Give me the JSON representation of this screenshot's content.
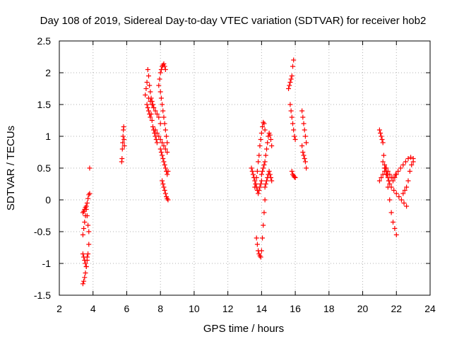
{
  "chart_data": {
    "type": "scatter",
    "title": "Day 108 of 2019, Sidereal Day-to-day VTEC variation (SDTVAR) for receiver hob2",
    "xlabel": "GPS time / hours",
    "ylabel": "SDTVAR / TECUs",
    "xlim": [
      2,
      24
    ],
    "ylim": [
      -1.5,
      2.5
    ],
    "xticks": [
      "2",
      "4",
      "6",
      "8",
      "10",
      "12",
      "14",
      "16",
      "18",
      "20",
      "22",
      "24"
    ],
    "yticks": [
      "2.5",
      "2",
      "1.5",
      "1",
      "0.5",
      "0",
      "-0.5",
      "-1",
      "-1.5"
    ],
    "grid": true,
    "marker": "+",
    "color": "#ff0000",
    "segments": [
      {
        "name": "arc-3.4-3.8a",
        "x": [
          3.4,
          3.45,
          3.5,
          3.55,
          3.6,
          3.65,
          3.7,
          3.75,
          3.8
        ],
        "y": [
          -0.55,
          -0.45,
          -0.35,
          -0.25,
          -0.15,
          -0.05,
          0.02,
          0.08,
          0.1
        ]
      },
      {
        "name": "arc-3.4-3.8b",
        "x": [
          3.4,
          3.45,
          3.5,
          3.55,
          3.6,
          3.65,
          3.7,
          3.75
        ],
        "y": [
          -0.2,
          -0.18,
          -0.15,
          -0.12,
          -0.1,
          -0.25,
          -0.4,
          -0.5
        ]
      },
      {
        "name": "arc-3.4-3.8c",
        "x": [
          3.4,
          3.45,
          3.5,
          3.55,
          3.6,
          3.65,
          3.7,
          3.75
        ],
        "y": [
          -0.85,
          -0.9,
          -0.95,
          -1.0,
          -1.05,
          -0.95,
          -0.85,
          -0.7
        ]
      },
      {
        "name": "arc-3.4-3.8d",
        "x": [
          3.4,
          3.45,
          3.5,
          3.55,
          3.6,
          3.65
        ],
        "y": [
          -1.32,
          -1.28,
          -1.22,
          -1.15,
          -1.05,
          -0.9
        ]
      },
      {
        "name": "outlier-3.8",
        "x": [
          3.8
        ],
        "y": [
          0.5
        ]
      },
      {
        "name": "arc-5.7",
        "x": [
          5.7,
          5.72,
          5.74,
          5.76,
          5.78,
          5.8,
          5.82,
          5.84,
          5.86
        ],
        "y": [
          0.6,
          0.65,
          0.8,
          0.9,
          1.0,
          1.1,
          1.15,
          0.95,
          0.85
        ]
      },
      {
        "name": "arc-7.1-7.6",
        "x": [
          7.1,
          7.15,
          7.2,
          7.25,
          7.3,
          7.35,
          7.4,
          7.45,
          7.5,
          7.55,
          7.6
        ],
        "y": [
          1.65,
          1.75,
          1.85,
          2.05,
          1.95,
          1.8,
          1.7,
          1.6,
          1.55,
          1.5,
          1.45
        ]
      },
      {
        "name": "arc-7.2-7.8",
        "x": [
          7.2,
          7.25,
          7.3,
          7.35,
          7.4,
          7.45,
          7.5,
          7.55,
          7.6,
          7.65,
          7.7,
          7.75,
          7.8
        ],
        "y": [
          1.5,
          1.45,
          1.4,
          1.35,
          1.3,
          1.35,
          1.25,
          1.15,
          1.1,
          1.05,
          1.0,
          0.95,
          0.9
        ]
      },
      {
        "name": "arc-7.3-8.0",
        "x": [
          7.3,
          7.4,
          7.5,
          7.6,
          7.7,
          7.8,
          7.9,
          8.0
        ],
        "y": [
          1.6,
          1.55,
          1.5,
          1.45,
          1.4,
          1.35,
          1.3,
          1.2
        ]
      },
      {
        "name": "arc-7.9-8.3",
        "x": [
          7.9,
          7.95,
          8.0,
          8.05,
          8.1,
          8.15,
          8.2,
          8.25,
          8.3
        ],
        "y": [
          1.8,
          1.9,
          2.0,
          2.05,
          2.1,
          2.12,
          2.14,
          2.1,
          2.05
        ]
      },
      {
        "name": "arc-8.0-8.4",
        "x": [
          8.0,
          8.05,
          8.1,
          8.15,
          8.2,
          8.25,
          8.3,
          8.35,
          8.4
        ],
        "y": [
          1.7,
          1.6,
          1.5,
          1.4,
          1.3,
          1.2,
          1.1,
          1.0,
          0.9
        ]
      },
      {
        "name": "arc-7.7-8.4",
        "x": [
          7.7,
          7.8,
          7.9,
          8.0,
          8.1,
          8.2,
          8.3,
          8.4
        ],
        "y": [
          1.1,
          1.05,
          1.0,
          0.95,
          0.9,
          0.85,
          0.8,
          0.75
        ]
      },
      {
        "name": "arc-8.0-8.5",
        "x": [
          8.0,
          8.05,
          8.1,
          8.15,
          8.2,
          8.25,
          8.3,
          8.35,
          8.4,
          8.45
        ],
        "y": [
          0.8,
          0.75,
          0.7,
          0.65,
          0.6,
          0.55,
          0.5,
          0.45,
          0.4,
          0.45
        ]
      },
      {
        "name": "arc-8.1-8.5",
        "x": [
          8.1,
          8.15,
          8.2,
          8.25,
          8.3,
          8.35,
          8.4,
          8.45
        ],
        "y": [
          0.3,
          0.25,
          0.2,
          0.15,
          0.1,
          0.05,
          0.02,
          0.0
        ]
      },
      {
        "name": "arc-13.4-14.0a",
        "x": [
          13.4,
          13.45,
          13.5,
          13.55,
          13.6,
          13.65,
          13.7,
          13.75,
          13.8,
          13.85,
          13.9,
          13.95,
          14.0
        ],
        "y": [
          0.5,
          0.45,
          0.4,
          0.35,
          0.3,
          0.25,
          0.2,
          0.15,
          0.1,
          0.15,
          0.2,
          0.25,
          0.3
        ]
      },
      {
        "name": "arc-13.6-14.2",
        "x": [
          13.6,
          13.65,
          13.7,
          13.75,
          13.8,
          13.85,
          13.9,
          13.95,
          14.0,
          14.05,
          14.1,
          14.15,
          14.2
        ],
        "y": [
          0.2,
          0.25,
          0.35,
          0.45,
          0.6,
          0.7,
          0.85,
          0.95,
          1.05,
          1.15,
          1.22,
          1.2,
          1.1
        ]
      },
      {
        "name": "arc-13.7-14.2",
        "x": [
          13.7,
          13.75,
          13.8,
          13.85,
          13.9,
          13.95,
          14.0,
          14.05,
          14.1,
          14.15,
          14.2
        ],
        "y": [
          -0.6,
          -0.7,
          -0.8,
          -0.85,
          -0.88,
          -0.9,
          -0.8,
          -0.6,
          -0.4,
          -0.2,
          0.0
        ]
      },
      {
        "name": "arc-14.0-14.6",
        "x": [
          14.0,
          14.05,
          14.1,
          14.15,
          14.2,
          14.25,
          14.3,
          14.35,
          14.4,
          14.45,
          14.5,
          14.55,
          14.6
        ],
        "y": [
          0.4,
          0.45,
          0.5,
          0.55,
          0.6,
          0.7,
          0.8,
          0.9,
          1.0,
          1.05,
          1.02,
          0.95,
          0.85
        ]
      },
      {
        "name": "arc-14.2-14.6",
        "x": [
          14.2,
          14.25,
          14.3,
          14.35,
          14.4,
          14.45,
          14.5,
          14.55,
          14.6
        ],
        "y": [
          0.2,
          0.25,
          0.3,
          0.35,
          0.4,
          0.45,
          0.4,
          0.35,
          0.3
        ]
      },
      {
        "name": "arc-15.6-15.9",
        "x": [
          15.6,
          15.65,
          15.7,
          15.75,
          15.8,
          15.85,
          15.9
        ],
        "y": [
          1.75,
          1.8,
          1.85,
          1.9,
          1.95,
          2.1,
          2.2
        ]
      },
      {
        "name": "arc-15.7-16.0",
        "x": [
          15.7,
          15.75,
          15.8,
          15.85,
          15.9,
          15.95,
          16.0
        ],
        "y": [
          1.5,
          1.4,
          1.3,
          1.2,
          1.1,
          1.0,
          0.95
        ]
      },
      {
        "name": "arc-15.8-16.0",
        "x": [
          15.8,
          15.85,
          15.9,
          15.95,
          16.0
        ],
        "y": [
          0.45,
          0.4,
          0.38,
          0.36,
          0.35
        ]
      },
      {
        "name": "arc-16.4-16.6",
        "x": [
          16.4,
          16.45,
          16.5,
          16.55,
          16.6,
          16.65
        ],
        "y": [
          1.4,
          1.3,
          1.2,
          1.1,
          1.0,
          0.9
        ]
      },
      {
        "name": "arc-16.4-16.7",
        "x": [
          16.4,
          16.45,
          16.5,
          16.55,
          16.6,
          16.65
        ],
        "y": [
          0.85,
          0.75,
          0.7,
          0.65,
          0.6,
          0.5
        ]
      },
      {
        "name": "arc-21.0-21.6",
        "x": [
          21.0,
          21.05,
          21.1,
          21.15,
          21.2,
          21.25,
          21.3,
          21.35,
          21.4,
          21.45,
          21.5,
          21.55,
          21.6
        ],
        "y": [
          1.1,
          1.05,
          1.0,
          0.95,
          0.9,
          0.7,
          0.55,
          0.5,
          0.45,
          0.4,
          0.35,
          0.3,
          0.25
        ]
      },
      {
        "name": "arc-21.0-22.0",
        "x": [
          21.0,
          21.1,
          21.2,
          21.3,
          21.4,
          21.5,
          21.6,
          21.7,
          21.8,
          21.9,
          22.0
        ],
        "y": [
          0.3,
          0.35,
          0.4,
          0.45,
          0.5,
          0.45,
          0.4,
          0.35,
          0.3,
          0.35,
          0.4
        ]
      },
      {
        "name": "arc-21.2-22.0",
        "x": [
          21.2,
          21.3,
          21.4,
          21.5,
          21.6,
          21.7,
          21.8,
          21.9,
          22.0
        ],
        "y": [
          0.6,
          0.5,
          0.4,
          0.2,
          0.0,
          -0.2,
          -0.35,
          -0.45,
          -0.55
        ]
      },
      {
        "name": "arc-21.4-22.6",
        "x": [
          21.4,
          21.55,
          21.7,
          21.85,
          22.0,
          22.15,
          22.3,
          22.45,
          22.6
        ],
        "y": [
          0.4,
          0.3,
          0.2,
          0.15,
          0.1,
          0.05,
          0.0,
          -0.05,
          -0.1
        ]
      },
      {
        "name": "arc-21.8-23.0",
        "x": [
          21.8,
          21.95,
          22.1,
          22.25,
          22.4,
          22.55,
          22.7,
          22.85,
          23.0
        ],
        "y": [
          0.35,
          0.4,
          0.45,
          0.5,
          0.55,
          0.6,
          0.65,
          0.67,
          0.65
        ]
      },
      {
        "name": "arc-22.4-23.0",
        "x": [
          22.4,
          22.5,
          22.6,
          22.7,
          22.8,
          22.9,
          23.0
        ],
        "y": [
          0.1,
          0.15,
          0.2,
          0.3,
          0.45,
          0.55,
          0.6
        ]
      }
    ]
  }
}
